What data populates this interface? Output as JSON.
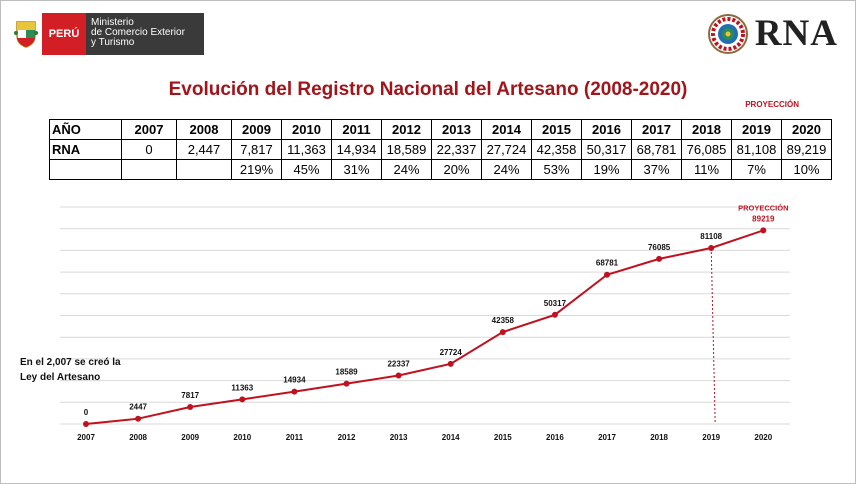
{
  "header": {
    "gov_country": "PERÚ",
    "gov_ministry_lines": [
      "Ministerio",
      "de Comercio Exterior",
      "y Turismo"
    ],
    "brand": "RNA",
    "title": "Evolución del Registro Nacional del Artesano (2008-2020)",
    "projection_label": "PROYECCIÓN",
    "accent_color": "#a3141a"
  },
  "table": {
    "row_labels": [
      "AÑO",
      "RNA"
    ],
    "years": [
      "2007",
      "2008",
      "2009",
      "2010",
      "2011",
      "2012",
      "2013",
      "2014",
      "2015",
      "2016",
      "2017",
      "2018",
      "2019",
      "2020"
    ],
    "rna": [
      "0",
      "2,447",
      "7,817",
      "11,363",
      "14,934",
      "18,589",
      "22,337",
      "27,724",
      "42,358",
      "50,317",
      "68,781",
      "76,085",
      "81,108",
      "89,219"
    ],
    "growth": [
      "",
      "",
      "219%",
      "45%",
      "31%",
      "24%",
      "20%",
      "24%",
      "53%",
      "19%",
      "37%",
      "11%",
      "7%",
      "10%"
    ]
  },
  "note": {
    "line1": "En el 2,007 se creó la",
    "line2": "Ley del Artesano"
  },
  "chart_data": {
    "type": "line",
    "title": "",
    "xlabel": "",
    "ylabel": "",
    "categories": [
      "2007",
      "2008",
      "2009",
      "2010",
      "2011",
      "2012",
      "2013",
      "2014",
      "2015",
      "2016",
      "2017",
      "2018",
      "2019",
      "2020"
    ],
    "values": [
      0,
      2447,
      7817,
      11363,
      14934,
      18589,
      22337,
      27724,
      42358,
      50317,
      68781,
      76085,
      81108,
      89219
    ],
    "data_labels": [
      "0",
      "2447",
      "7817",
      "11363",
      "14934",
      "18589",
      "22337",
      "27724",
      "42358",
      "50317",
      "68781",
      "76085",
      "81108",
      "89219"
    ],
    "ylim": [
      0,
      100000
    ],
    "grid": true,
    "annotation": "PROYECCIÓN",
    "projection_from": "2019",
    "line_color": "#c0111f",
    "grid_color": "#d9d9d9"
  }
}
